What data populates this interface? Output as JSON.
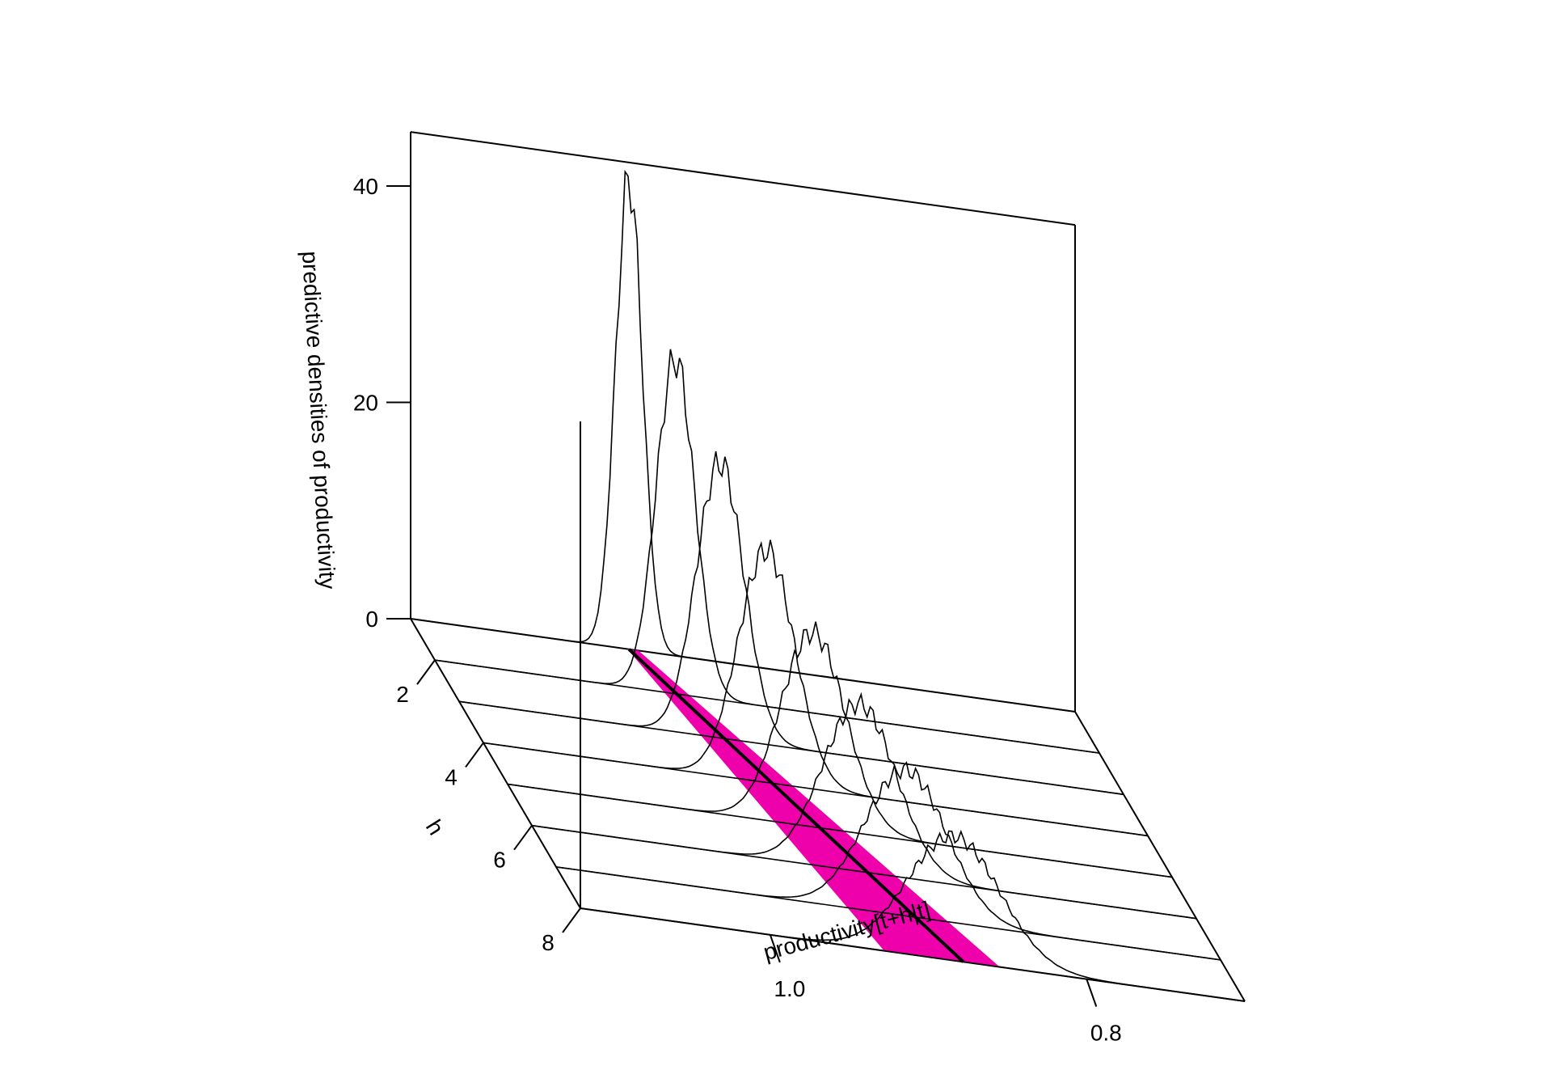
{
  "chart_data": {
    "type": "3d-ridgeline",
    "xlabel": "productivity[t+h|t]",
    "ylabel": "h",
    "zlabel": "predictive densities of productivity",
    "x_ticks": [
      {
        "value": 1.0,
        "label": "1.0"
      },
      {
        "value": 0.8,
        "label": "0.8"
      }
    ],
    "h_ticks": [
      {
        "value": 2,
        "label": "2"
      },
      {
        "value": 4,
        "label": "4"
      },
      {
        "value": 6,
        "label": "6"
      },
      {
        "value": 8,
        "label": "8"
      }
    ],
    "z_ticks": [
      {
        "value": 0,
        "label": "0"
      },
      {
        "value": 20,
        "label": "20"
      },
      {
        "value": 40,
        "label": "40"
      }
    ],
    "xlim": [
      0.7,
      1.12
    ],
    "hlim": [
      1,
      8
    ],
    "zlim": [
      0,
      45
    ],
    "band_color": "#ee00aa",
    "line_color": "#000000",
    "densities": [
      {
        "h": 1,
        "mean": 0.982,
        "sd": 0.0085,
        "peak": 43.5
      },
      {
        "h": 2,
        "mean": 0.968,
        "sd": 0.0122,
        "peak": 31.0
      },
      {
        "h": 3,
        "mean": 0.955,
        "sd": 0.015,
        "peak": 25.5
      },
      {
        "h": 4,
        "mean": 0.941,
        "sd": 0.0178,
        "peak": 21.5
      },
      {
        "h": 5,
        "mean": 0.927,
        "sd": 0.0205,
        "peak": 18.0
      },
      {
        "h": 6,
        "mean": 0.913,
        "sd": 0.0232,
        "peak": 15.5
      },
      {
        "h": 7,
        "mean": 0.899,
        "sd": 0.0258,
        "peak": 13.5
      },
      {
        "h": 8,
        "mean": 0.884,
        "sd": 0.029,
        "peak": 11.5
      }
    ],
    "band": [
      {
        "h": 1,
        "lower": 0.976,
        "upper": 0.983
      },
      {
        "h": 8,
        "lower": 0.855,
        "upper": 0.928
      }
    ],
    "median_line": [
      {
        "h": 1,
        "value": 0.982
      },
      {
        "h": 8,
        "value": 0.878
      }
    ]
  }
}
